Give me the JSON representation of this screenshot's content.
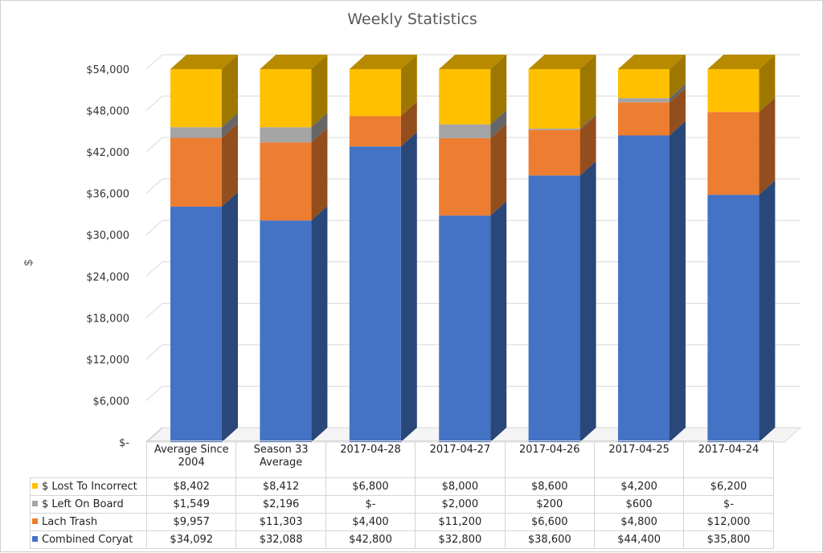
{
  "chart_data": {
    "type": "bar",
    "title": "Weekly Statistics",
    "ylabel": "$",
    "xlabel": "",
    "stacked": true,
    "three_d": true,
    "ylim": [
      0,
      54000
    ],
    "y_ticks": [
      0,
      6000,
      12000,
      18000,
      24000,
      30000,
      36000,
      42000,
      48000,
      54000
    ],
    "y_tick_labels": [
      "$-",
      "$6,000",
      "$12,000",
      "$18,000",
      "$24,000",
      "$30,000",
      "$36,000",
      "$42,000",
      "$48,000",
      "$54,000"
    ],
    "grid": true,
    "legend_placement": "data-table",
    "categories": [
      "Average Since 2004",
      "Season 33 Average",
      "2017-04-28",
      "2017-04-27",
      "2017-04-26",
      "2017-04-25",
      "2017-04-24"
    ],
    "series": [
      {
        "name": "$ Lost To Incorrect",
        "color": "#FFC000",
        "values": [
          8402,
          8412,
          6800,
          8000,
          8600,
          4200,
          6200
        ],
        "labels": [
          "$8,402",
          "$8,412",
          "$6,800",
          "$8,000",
          "$8,600",
          "$4,200",
          "$6,200"
        ]
      },
      {
        "name": "$ Left On Board",
        "color": "#A5A5A5",
        "values": [
          1549,
          2196,
          0,
          2000,
          200,
          600,
          0
        ],
        "labels": [
          "$1,549",
          "$2,196",
          "$-",
          "$2,000",
          "$200",
          "$600",
          "$-"
        ]
      },
      {
        "name": "Lach Trash",
        "color": "#ED7D31",
        "values": [
          9957,
          11303,
          4400,
          11200,
          6600,
          4800,
          12000
        ],
        "labels": [
          "$9,957",
          "$11,303",
          "$4,400",
          "$11,200",
          "$6,600",
          "$4,800",
          "$12,000"
        ]
      },
      {
        "name": "Combined Coryat",
        "color": "#4472C4",
        "values": [
          34092,
          32088,
          42800,
          32800,
          38600,
          44400,
          35800
        ],
        "labels": [
          "$34,092",
          "$32,088",
          "$42,800",
          "$32,800",
          "$38,600",
          "$44,400",
          "$35,800"
        ]
      }
    ]
  }
}
